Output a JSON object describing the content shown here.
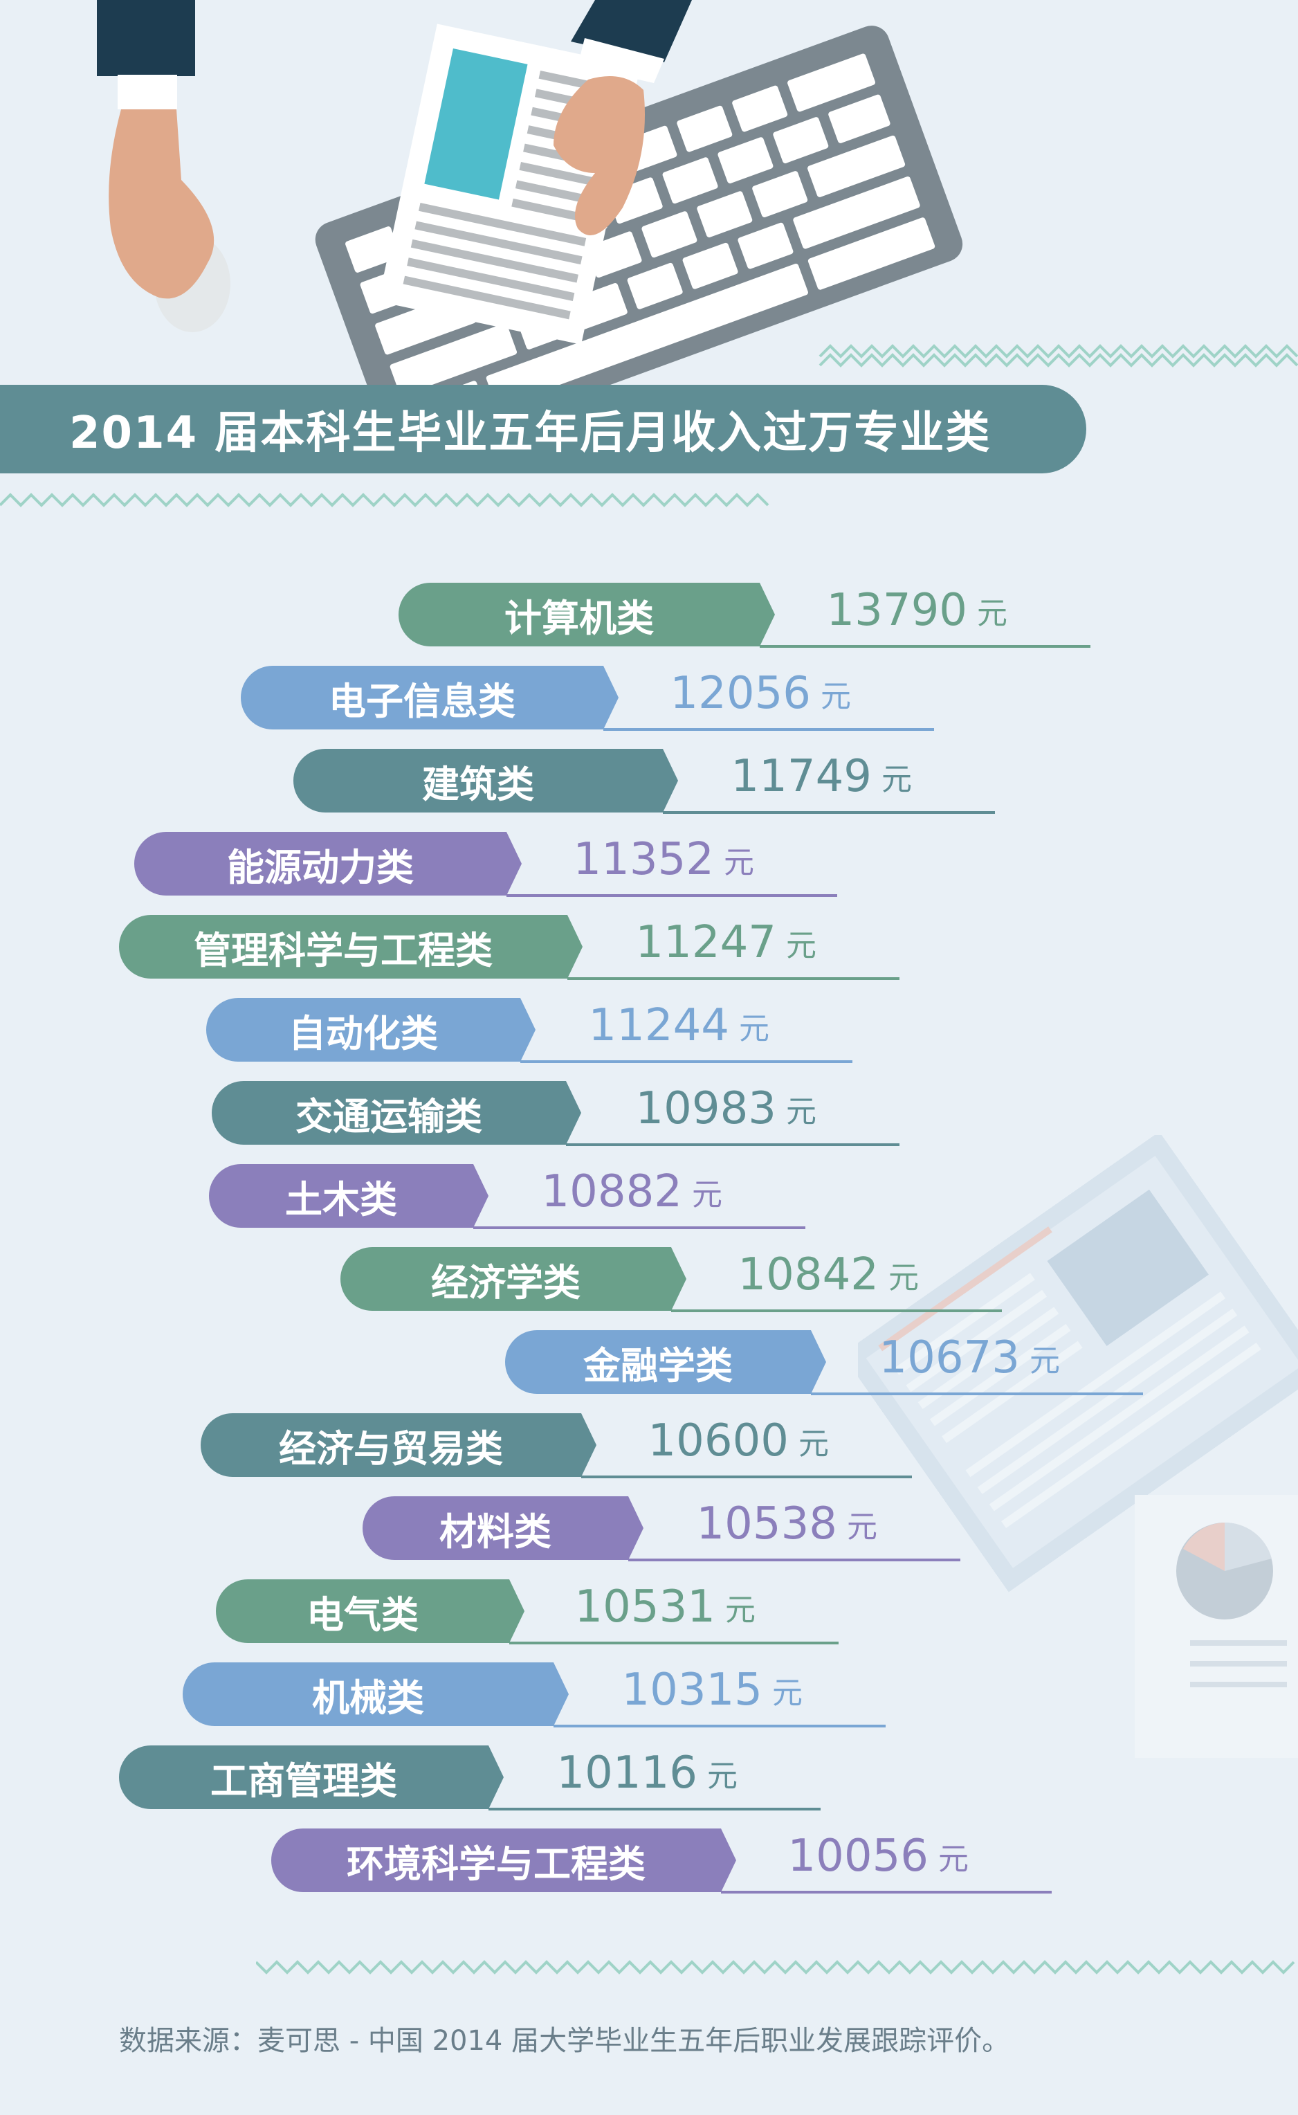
{
  "title": "2014 届本科生毕业五年后月收入过万专业类",
  "unit": "元",
  "source": "数据来源：麦可思 - 中国 2014 届大学毕业生五年后职业发展跟踪评价。",
  "palette": {
    "green": "#6aa08a",
    "blue": "#7aa6d4",
    "slate": "#5f8d94",
    "purple": "#8b7fbb",
    "background": "#e9f0f6"
  },
  "chart_data": {
    "type": "bar",
    "title": "2014 届本科生毕业五年后月收入过万专业类",
    "categories": [
      "计算机类",
      "电子信息类",
      "建筑类",
      "能源动力类",
      "管理科学与工程类",
      "自动化类",
      "交通运输类",
      "土木类",
      "经济学类",
      "金融学类",
      "经济与贸易类",
      "材料类",
      "电气类",
      "机械类",
      "工商管理类",
      "环境科学与工程类"
    ],
    "values": [
      13790,
      12056,
      11749,
      11352,
      11247,
      11244,
      10983,
      10882,
      10842,
      10673,
      10600,
      10538,
      10531,
      10315,
      10116,
      10056
    ],
    "unit": "元",
    "colors": [
      "green",
      "blue",
      "slate",
      "purple",
      "green",
      "blue",
      "slate",
      "purple",
      "green",
      "blue",
      "slate",
      "purple",
      "green",
      "blue",
      "slate",
      "purple"
    ]
  }
}
